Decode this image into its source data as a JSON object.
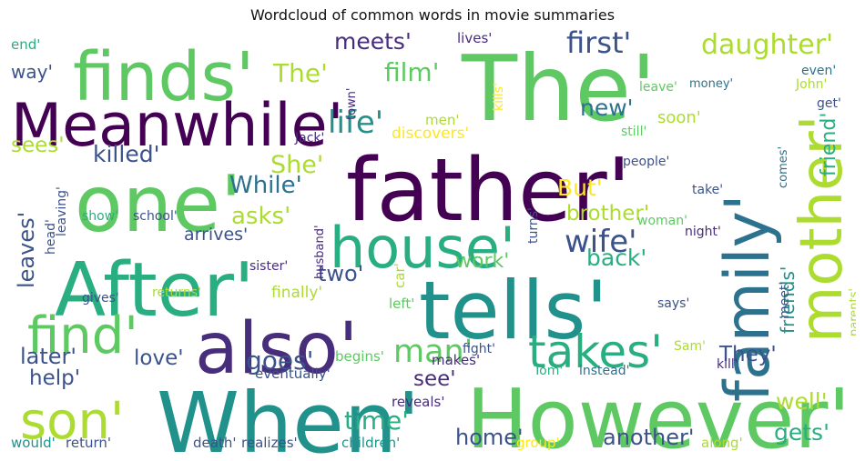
{
  "title": "Wordcloud of common words in movie summaries",
  "palette": {
    "purple_dark": "#440154",
    "purple": "#472d7b",
    "indigo": "#3b528b",
    "blue": "#2c728e",
    "teal": "#21918c",
    "green_teal": "#28ae80",
    "green": "#5ec962",
    "lime": "#addc30",
    "yellow": "#fde725"
  },
  "words": [
    {
      "text": "The'",
      "color": "#5ec962"
    },
    {
      "text": "father'",
      "color": "#440154"
    },
    {
      "text": "When'",
      "color": "#21918c"
    },
    {
      "text": "However'",
      "color": "#5ec962"
    },
    {
      "text": "family'",
      "color": "#2c728e"
    },
    {
      "text": "tells'",
      "color": "#21918c"
    },
    {
      "text": "finds'",
      "color": "#5ec962"
    },
    {
      "text": "one'",
      "color": "#5ec962"
    },
    {
      "text": "After'",
      "color": "#28ae80"
    },
    {
      "text": "also'",
      "color": "#472d7b"
    },
    {
      "text": "mother'",
      "color": "#addc30"
    },
    {
      "text": "Meanwhile'",
      "color": "#440154"
    },
    {
      "text": "house'",
      "color": "#28ae80"
    },
    {
      "text": "find'",
      "color": "#5ec962"
    },
    {
      "text": "son'",
      "color": "#addc30"
    },
    {
      "text": "takes'",
      "color": "#28ae80"
    },
    {
      "text": "man'",
      "color": "#5ec962"
    },
    {
      "text": "wife'",
      "color": "#3b528b"
    },
    {
      "text": "life'",
      "color": "#21918c"
    },
    {
      "text": "killed'",
      "color": "#3b528b"
    },
    {
      "text": "She'",
      "color": "#addc30"
    },
    {
      "text": "first'",
      "color": "#3b528b"
    },
    {
      "text": "daughter'",
      "color": "#addc30"
    },
    {
      "text": "meets'",
      "color": "#472d7b"
    },
    {
      "text": "film'",
      "color": "#5ec962"
    },
    {
      "text": "The'",
      "color": "#addc30"
    },
    {
      "text": "way'",
      "color": "#3b528b"
    },
    {
      "text": "sees'",
      "color": "#addc30"
    },
    {
      "text": "While'",
      "color": "#2c728e"
    },
    {
      "text": "asks'",
      "color": "#addc30"
    },
    {
      "text": "two'",
      "color": "#3b528b"
    },
    {
      "text": "But'",
      "color": "#fde725"
    },
    {
      "text": "brother'",
      "color": "#addc30"
    },
    {
      "text": "friend'",
      "color": "#28ae80"
    },
    {
      "text": "friends'",
      "color": "#21918c"
    },
    {
      "text": "new'",
      "color": "#2c728e"
    },
    {
      "text": "leaves'",
      "color": "#3b528b"
    },
    {
      "text": "arrives'",
      "color": "#3b528b"
    },
    {
      "text": "back'",
      "color": "#28ae80"
    },
    {
      "text": "work'",
      "color": "#5ec962"
    },
    {
      "text": "later'",
      "color": "#3b528b"
    },
    {
      "text": "love'",
      "color": "#3b528b"
    },
    {
      "text": "goes'",
      "color": "#3b528b"
    },
    {
      "text": "help'",
      "color": "#3b528b"
    },
    {
      "text": "They'",
      "color": "#3b528b"
    },
    {
      "text": "see'",
      "color": "#472d7b"
    },
    {
      "text": "time'",
      "color": "#28ae80"
    },
    {
      "text": "home'",
      "color": "#3b528b"
    },
    {
      "text": "another'",
      "color": "#3b528b"
    },
    {
      "text": "well'",
      "color": "#addc30"
    },
    {
      "text": "gets'",
      "color": "#28ae80"
    },
    {
      "text": "soon'",
      "color": "#addc30"
    },
    {
      "text": "discovers'",
      "color": "#fde725"
    },
    {
      "text": "finally'",
      "color": "#addc30"
    },
    {
      "text": "begins'",
      "color": "#5ec962"
    },
    {
      "text": "eventually'",
      "color": "#3b528b"
    },
    {
      "text": "makes'",
      "color": "#472d7b"
    },
    {
      "text": "reveals'",
      "color": "#472d7b"
    },
    {
      "text": "fight'",
      "color": "#3b528b"
    },
    {
      "text": "Tom'",
      "color": "#28ae80"
    },
    {
      "text": "instead'",
      "color": "#2c728e"
    },
    {
      "text": "kill'",
      "color": "#472d7b"
    },
    {
      "text": "Sam'",
      "color": "#addc30"
    },
    {
      "text": "end'",
      "color": "#28ae80"
    },
    {
      "text": "lives'",
      "color": "#472d7b"
    },
    {
      "text": "kills'",
      "color": "#fde725"
    },
    {
      "text": "money'",
      "color": "#2c728e"
    },
    {
      "text": "even'",
      "color": "#2c728e"
    },
    {
      "text": "leave'",
      "color": "#5ec962"
    },
    {
      "text": "John'",
      "color": "#addc30"
    },
    {
      "text": "get'",
      "color": "#3b528b"
    },
    {
      "text": "still'",
      "color": "#5ec962"
    },
    {
      "text": "town'",
      "color": "#472d7b"
    },
    {
      "text": "men'",
      "color": "#addc30"
    },
    {
      "text": "Jack'",
      "color": "#472d7b"
    },
    {
      "text": "people'",
      "color": "#3b528b"
    },
    {
      "text": "comes'",
      "color": "#2c728e"
    },
    {
      "text": "take'",
      "color": "#3b528b"
    },
    {
      "text": "woman'",
      "color": "#5ec962"
    },
    {
      "text": "night'",
      "color": "#472d7b"
    },
    {
      "text": "show'",
      "color": "#28ae80"
    },
    {
      "text": "school'",
      "color": "#3b528b"
    },
    {
      "text": "leaving'",
      "color": "#3b528b"
    },
    {
      "text": "head'",
      "color": "#3b528b"
    },
    {
      "text": "husband'",
      "color": "#472d7b"
    },
    {
      "text": "turns'",
      "color": "#3b528b"
    },
    {
      "text": "sister'",
      "color": "#472d7b"
    },
    {
      "text": "car'",
      "color": "#addc30"
    },
    {
      "text": "gives'",
      "color": "#3b528b"
    },
    {
      "text": "returns'",
      "color": "#addc30"
    },
    {
      "text": "left'",
      "color": "#5ec962"
    },
    {
      "text": "says'",
      "color": "#3b528b"
    },
    {
      "text": "meet'",
      "color": "#3b528b"
    },
    {
      "text": "parents'",
      "color": "#addc30"
    },
    {
      "text": "would'",
      "color": "#21918c"
    },
    {
      "text": "return'",
      "color": "#3b528b"
    },
    {
      "text": "death'",
      "color": "#3b528b"
    },
    {
      "text": "realizes'",
      "color": "#3b528b"
    },
    {
      "text": "children'",
      "color": "#21918c"
    },
    {
      "text": "group'",
      "color": "#fde725"
    },
    {
      "text": "along'",
      "color": "#addc30"
    }
  ]
}
